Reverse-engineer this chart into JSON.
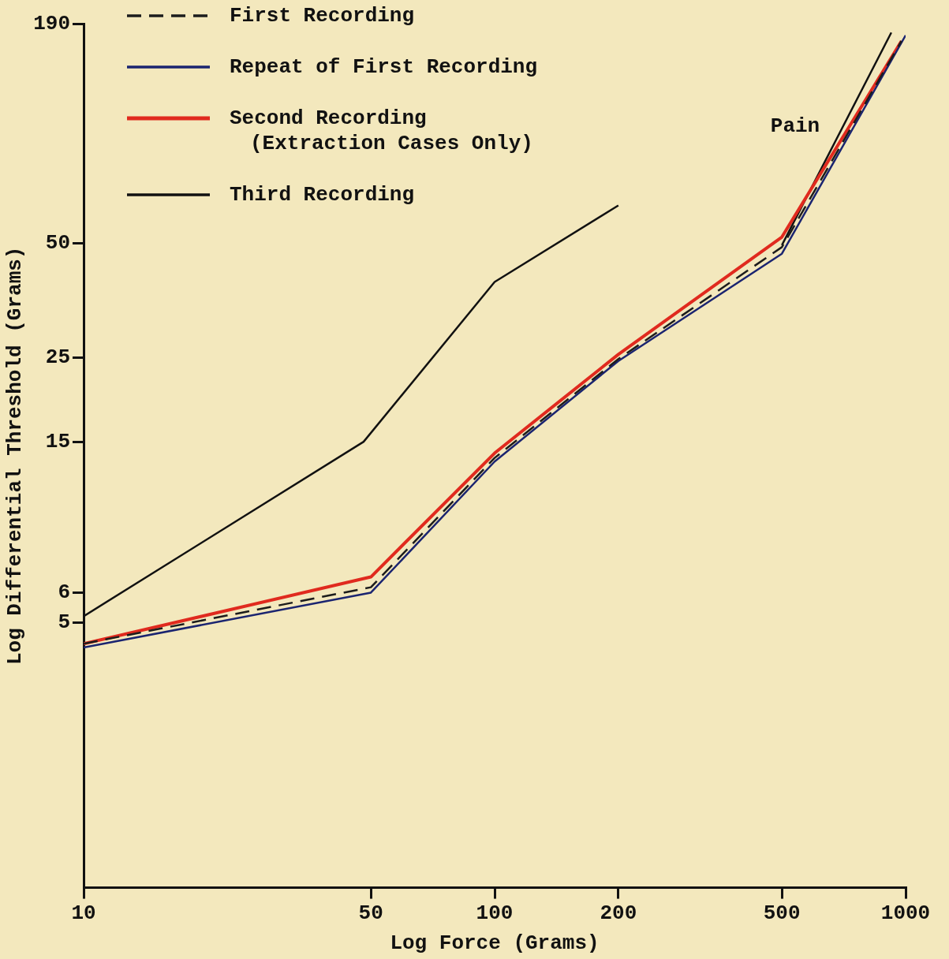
{
  "chart_data": {
    "type": "line",
    "xlabel": "Log Force (Grams)",
    "ylabel": "Log Differential Threshold (Grams)",
    "log": "xy",
    "xlim": [
      10,
      1000
    ],
    "xticks": [
      10,
      50,
      100,
      200,
      500,
      1000
    ],
    "ylim": [
      1,
      190
    ],
    "yticks": [
      5,
      6,
      15,
      25,
      50,
      190
    ],
    "grid": false,
    "legend": "top left",
    "marker": "none",
    "annotations": [
      "Pain"
    ],
    "series": [
      {
        "name": "First Recording",
        "color": "#1c1c1c",
        "line_style": "dashed",
        "x": [
          10,
          50,
          100,
          200,
          500,
          977
        ],
        "values": [
          4.4,
          6.2,
          13.6,
          24.8,
          48.9,
          171
        ]
      },
      {
        "name": "Repeat of First Recording",
        "color": "#1a2470",
        "line_style": "solid",
        "x": [
          10,
          50,
          100,
          200,
          500,
          1000
        ],
        "values": [
          4.3,
          6.0,
          13.3,
          24.5,
          47,
          177
        ]
      },
      {
        "name": "Second Recording (Extraction Cases Only)",
        "color": "#e02a1e",
        "line_style": "solid",
        "x": [
          10,
          50,
          100,
          200,
          500,
          977
        ],
        "values": [
          4.4,
          6.6,
          14,
          25.5,
          52,
          171
        ]
      },
      {
        "name": "Third Recording",
        "color": "#111111",
        "line_style": "solid",
        "x": [
          10,
          48,
          100,
          200,
          300,
          500,
          923
        ],
        "values": [
          5.2,
          15,
          39.6,
          63,
          null,
          49.5,
          180
        ]
      }
    ]
  }
}
